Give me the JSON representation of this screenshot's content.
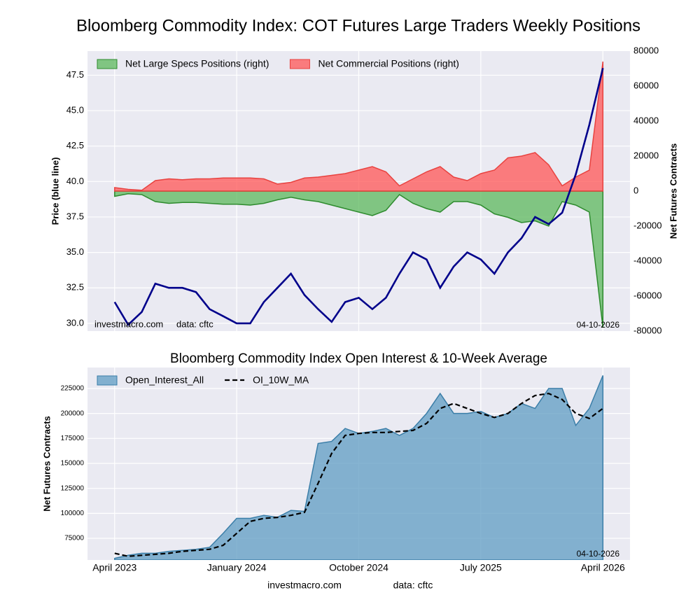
{
  "title": "Bloomberg Commodity Index: COT Futures Large Traders Weekly Positions",
  "footer": [
    "investmacro.com",
    "data: cftc"
  ],
  "chart_data": [
    {
      "type": "line",
      "ylabel": "Price (blue line)",
      "y2label": "Net Futures Contracts",
      "source": "investmacro.com",
      "source_data": "data: cftc",
      "date_label": "04-10-2026",
      "legend": "upper-left",
      "grid": true,
      "x": [
        "2023-04",
        "2023-05",
        "2023-06",
        "2023-07",
        "2023-08",
        "2023-09",
        "2023-10",
        "2023-11",
        "2023-12",
        "2024-01",
        "2024-02",
        "2024-03",
        "2024-04",
        "2024-05",
        "2024-06",
        "2024-07",
        "2024-08",
        "2024-09",
        "2024-10",
        "2024-11",
        "2024-12",
        "2025-01",
        "2025-02",
        "2025-03",
        "2025-04",
        "2025-05",
        "2025-06",
        "2025-07",
        "2025-08",
        "2025-09",
        "2025-10",
        "2025-11",
        "2025-12",
        "2026-01",
        "2026-02",
        "2026-03",
        "2026-04"
      ],
      "xlim": [
        "2023-02",
        "2026-06"
      ],
      "ylim": [
        29.45,
        49.2
      ],
      "yticks": [
        {
          "value": 30,
          "label": "30.0"
        },
        32.5,
        {
          "value": 35,
          "label": "35.0"
        },
        37.5,
        {
          "value": 40,
          "label": "40.0"
        },
        42.5,
        {
          "value": 45,
          "label": "45.0"
        },
        47.5
      ],
      "y2lim": [
        -80000,
        80000
      ],
      "y2ticks": [
        -80000,
        -60000,
        -40000,
        -20000,
        0,
        20000,
        40000,
        60000,
        80000
      ],
      "series": [
        {
          "name": "Net Large Specs Positions (right)",
          "axis": "y2",
          "style": "area",
          "color": "#2e8b2e",
          "fill": "#5cb85c",
          "values": [
            -3000,
            -1500,
            -2000,
            -6000,
            -7000,
            -6500,
            -6500,
            -7000,
            -7500,
            -7500,
            -8000,
            -7000,
            -5000,
            -3500,
            -5000,
            -6000,
            -8000,
            -10000,
            -12000,
            -14000,
            -11000,
            -2000,
            -7000,
            -10000,
            -12000,
            -6000,
            -6000,
            -8000,
            -13000,
            -15000,
            -18000,
            -17000,
            -20000,
            -6000,
            -8000,
            -12000,
            -78000
          ]
        },
        {
          "name": "Net Commercial Positions (right)",
          "axis": "y2",
          "style": "area",
          "color": "#e8423f",
          "fill": "#ff5555",
          "values": [
            2000,
            1000,
            500,
            6000,
            7000,
            6500,
            7000,
            7000,
            7500,
            7500,
            7500,
            7000,
            4000,
            5000,
            7500,
            8000,
            9000,
            10000,
            12000,
            14000,
            11000,
            3000,
            7000,
            11000,
            14000,
            8000,
            6000,
            10000,
            12000,
            19000,
            20000,
            22000,
            15000,
            3000,
            8000,
            12000,
            74000
          ]
        },
        {
          "axis": "y",
          "style": "line",
          "color": "#00008b",
          "values": [
            31.5,
            29.9,
            30.8,
            32.8,
            32.5,
            32.5,
            32.2,
            31.0,
            30.5,
            30.0,
            30.0,
            31.5,
            32.5,
            33.5,
            32.0,
            31.0,
            30.1,
            31.5,
            31.8,
            31.0,
            31.8,
            33.5,
            35.0,
            34.5,
            32.5,
            34.0,
            35.0,
            34.5,
            33.5,
            35.0,
            36.0,
            37.5,
            37.0,
            37.8,
            40.5,
            44.0,
            48.0
          ]
        }
      ]
    },
    {
      "type": "line",
      "title": "Bloomberg Commodity Index Open Interest & 10-Week Average",
      "ylabel": "Net Futures Contracts",
      "date_label": "04-10-2026",
      "legend": "upper-left",
      "grid": true,
      "x": [
        "2023-04",
        "2023-05",
        "2023-06",
        "2023-07",
        "2023-08",
        "2023-09",
        "2023-10",
        "2023-11",
        "2023-12",
        "2024-01",
        "2024-02",
        "2024-03",
        "2024-04",
        "2024-05",
        "2024-06",
        "2024-07",
        "2024-08",
        "2024-09",
        "2024-10",
        "2024-11",
        "2024-12",
        "2025-01",
        "2025-02",
        "2025-03",
        "2025-04",
        "2025-05",
        "2025-06",
        "2025-07",
        "2025-08",
        "2025-09",
        "2025-10",
        "2025-11",
        "2025-12",
        "2026-01",
        "2026-02",
        "2026-03",
        "2026-04"
      ],
      "xlim": [
        "2023-02",
        "2026-06"
      ],
      "xticks": [
        {
          "value": "2023-04",
          "label": "April 2023"
        },
        {
          "value": "2024-01",
          "label": "January 2024"
        },
        {
          "value": "2024-10",
          "label": "October 2024"
        },
        {
          "value": "2025-07",
          "label": "July 2025"
        },
        {
          "value": "2026-04",
          "label": "April 2026"
        }
      ],
      "ylim": [
        53300,
        246000
      ],
      "yticks": [
        75000,
        100000,
        125000,
        150000,
        175000,
        200000,
        225000
      ],
      "series": [
        {
          "name": "Open_Interest_All",
          "style": "area",
          "color": "#3b7ea8",
          "fill": "#5f9cc3",
          "values": [
            55000,
            58000,
            60000,
            60000,
            62000,
            63000,
            64000,
            66000,
            80000,
            95000,
            95000,
            98000,
            96000,
            103000,
            102000,
            170000,
            172000,
            185000,
            180000,
            182000,
            185000,
            178000,
            185000,
            200000,
            220000,
            200000,
            200000,
            202000,
            196000,
            200000,
            210000,
            205000,
            225000,
            225000,
            188000,
            205000,
            238000
          ]
        },
        {
          "name": "OI_10W_MA",
          "style": "line",
          "dash": true,
          "color": "#000000",
          "values": [
            60000,
            57000,
            58000,
            59000,
            60000,
            62000,
            63000,
            64000,
            68000,
            80000,
            92000,
            95000,
            96000,
            98000,
            101000,
            130000,
            160000,
            178000,
            180000,
            181000,
            181000,
            182000,
            183000,
            190000,
            205000,
            210000,
            205000,
            200000,
            196000,
            200000,
            210000,
            218000,
            220000,
            214000,
            200000,
            195000,
            205000
          ]
        }
      ]
    }
  ]
}
